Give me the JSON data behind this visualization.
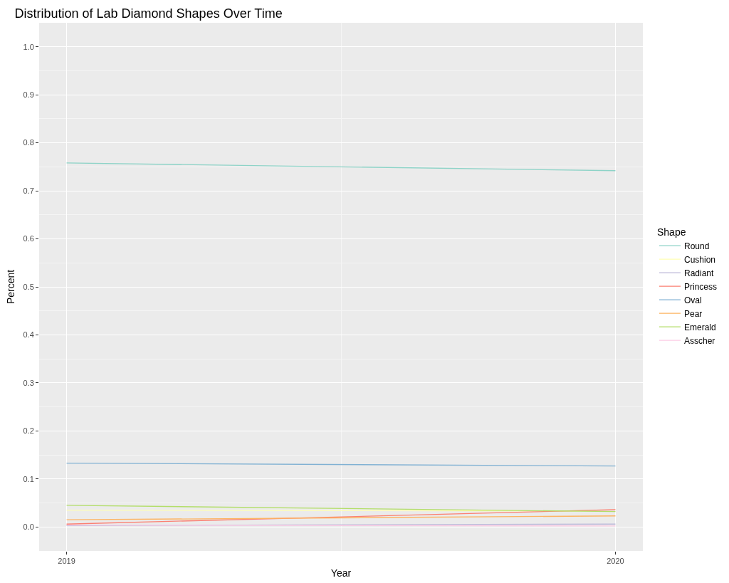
{
  "chart_data": {
    "type": "line",
    "title": "Distribution of Lab Diamond Shapes Over Time",
    "xlabel": "Year",
    "ylabel": "Percent",
    "legend_title": "Shape",
    "x": [
      2019,
      2020
    ],
    "series": [
      {
        "name": "Round",
        "color": "#8dd3c7",
        "values": [
          0.758,
          0.742
        ]
      },
      {
        "name": "Cushion",
        "color": "#ffffb3",
        "values": [
          0.035,
          0.033
        ]
      },
      {
        "name": "Radiant",
        "color": "#bebada",
        "values": [
          0.003,
          0.006
        ]
      },
      {
        "name": "Princess",
        "color": "#fb8072",
        "values": [
          0.006,
          0.036
        ]
      },
      {
        "name": "Oval",
        "color": "#80b1d3",
        "values": [
          0.133,
          0.127
        ]
      },
      {
        "name": "Pear",
        "color": "#fdb462",
        "values": [
          0.015,
          0.023
        ]
      },
      {
        "name": "Emerald",
        "color": "#b3de69",
        "values": [
          0.045,
          0.032
        ]
      },
      {
        "name": "Asscher",
        "color": "#fccde5",
        "values": [
          0.004,
          0.002
        ]
      }
    ],
    "xlim": [
      2018.95,
      2020.05
    ],
    "xticks": [
      2019,
      2020
    ],
    "ylim": [
      -0.05,
      1.05
    ],
    "yticks": [
      {
        "value": 0,
        "label": "0.0"
      },
      0.1,
      0.2,
      0.3,
      0.4,
      0.5,
      0.6,
      0.7,
      0.8,
      0.9,
      {
        "value": 1,
        "label": "1.0"
      }
    ],
    "grid": true,
    "legend": "right",
    "marker": "none",
    "line_style": "solid"
  }
}
